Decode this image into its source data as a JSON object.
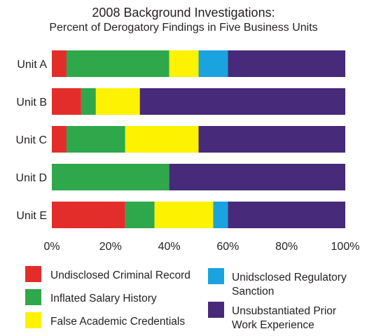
{
  "chart_data": {
    "type": "bar",
    "orientation": "horizontal",
    "stacked": true,
    "title": "2008 Background Investigations:",
    "subtitle": "Percent of Derogatory Findings in Five Business Units",
    "categories": [
      "Unit A",
      "Unit B",
      "Unit C",
      "Unit D",
      "Unit E"
    ],
    "xlim": [
      0,
      100
    ],
    "x_ticks": [
      "0%",
      "20%",
      "40%",
      "60%",
      "80%",
      "100%"
    ],
    "x_tick_values": [
      0,
      20,
      40,
      60,
      80,
      100
    ],
    "grid": false,
    "legend_position": "bottom",
    "series": [
      {
        "name": "Undisclosed Criminal Record",
        "color": "#e32d2a",
        "values": [
          5,
          10,
          5,
          0,
          25
        ]
      },
      {
        "name": "Inflated Salary History",
        "color": "#2ea84a",
        "values": [
          35,
          5,
          20,
          40,
          10
        ]
      },
      {
        "name": "False Academic Credentials",
        "color": "#fdf200",
        "values": [
          10,
          15,
          25,
          0,
          20
        ]
      },
      {
        "name": "Unidsclosed Regulatory Sanction",
        "color": "#1aa3de",
        "values": [
          10,
          0,
          0,
          0,
          5
        ]
      },
      {
        "name": "Unsubstantiated Prior Work Experience",
        "color": "#472a7a",
        "values": [
          40,
          70,
          50,
          60,
          40
        ]
      }
    ],
    "legend": {
      "col1": [
        {
          "series": 0,
          "lines": [
            "Undisclosed Criminal Record"
          ]
        },
        {
          "series": 1,
          "lines": [
            "Inflated Salary History"
          ]
        },
        {
          "series": 2,
          "lines": [
            "False Academic Credentials"
          ]
        }
      ],
      "col2": [
        {
          "series": 3,
          "lines": [
            "Unidsclosed Regulatory",
            "Sanction"
          ]
        },
        {
          "series": 4,
          "lines": [
            "Unsubstantiated Prior",
            "Work Experience"
          ]
        }
      ]
    }
  }
}
